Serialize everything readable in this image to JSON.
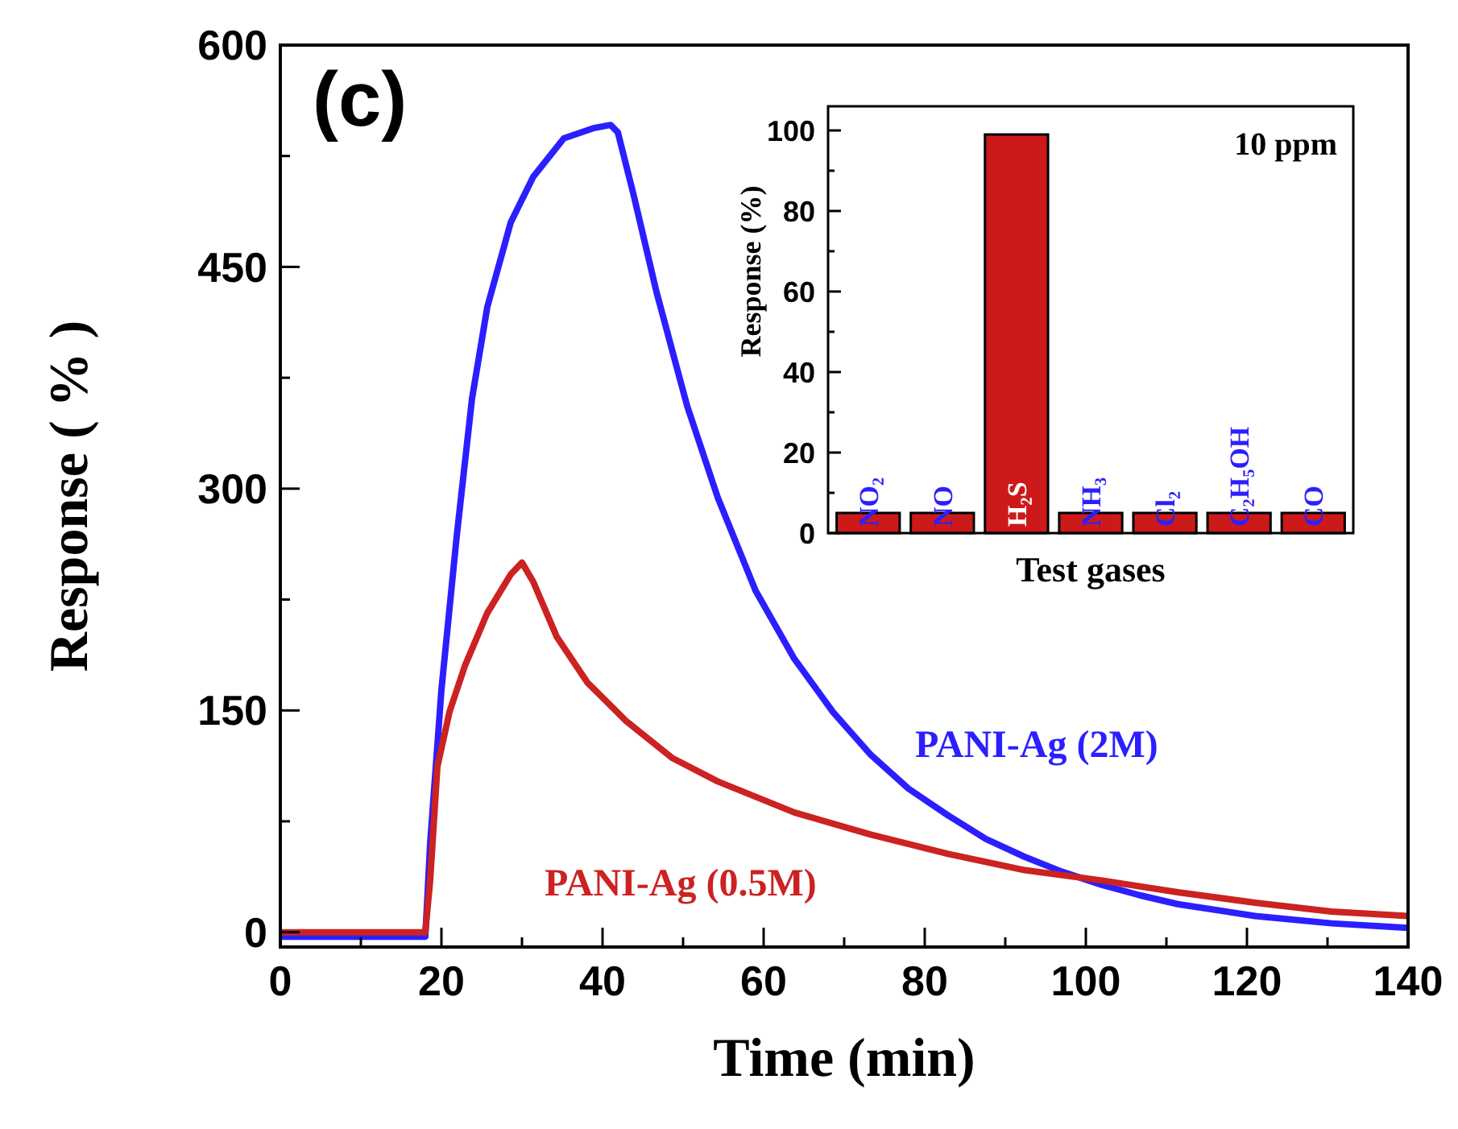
{
  "chart_data": [
    {
      "type": "line",
      "xlabel": "Time (min)",
      "ylabel": "Response ( % )",
      "annotations": [
        "(c)"
      ],
      "xlim": [
        0,
        140
      ],
      "ylim": [
        -10,
        600
      ],
      "xticks": [
        0,
        {
          "value": 10,
          "label": null
        },
        20,
        {
          "value": 30,
          "label": null
        },
        40,
        {
          "value": 50,
          "label": null
        },
        60,
        {
          "value": 70,
          "label": null
        },
        80,
        {
          "value": 90,
          "label": null
        },
        100,
        {
          "value": 110,
          "label": null
        },
        120,
        {
          "value": 130,
          "label": null
        },
        140
      ],
      "yticks": [
        0,
        {
          "value": 75,
          "label": null
        },
        150,
        {
          "value": 225,
          "label": null
        },
        300,
        {
          "value": 375,
          "label": null
        },
        450,
        {
          "value": 525,
          "label": null
        },
        600
      ],
      "legend": false,
      "grid": false,
      "marker": "none",
      "line_style": "solid",
      "series": [
        {
          "name": "PANI-Ag (2M)",
          "color": "#2b1fff",
          "x": [
            0,
            10,
            18,
            18.6,
            20,
            21.9,
            23.8,
            25.7,
            28.6,
            31.4,
            35.2,
            39,
            41,
            41.9,
            43.8,
            46.7,
            50.5,
            54.3,
            59,
            63.8,
            68.6,
            73.3,
            78,
            82.9,
            87.6,
            92.4,
            97,
            102,
            106.7,
            111.4,
            121,
            130.5,
            140
          ],
          "values": [
            -3,
            -3,
            -3,
            60,
            164,
            268,
            361,
            423,
            480,
            511,
            537,
            544,
            546,
            541,
            500,
            433,
            356,
            294,
            231,
            185,
            149,
            120,
            97,
            79,
            63,
            51,
            41,
            32,
            25,
            19,
            11,
            6,
            3
          ]
        },
        {
          "name": "PANI-Ag (0.5M)",
          "color": "#cc2222",
          "x": [
            0,
            10,
            18,
            18.6,
            19.5,
            21,
            22.9,
            25.7,
            28.6,
            30,
            31.4,
            34.3,
            38.1,
            42.9,
            48.6,
            54.3,
            63.8,
            73.3,
            82.9,
            92.4,
            102,
            111.4,
            121,
            130.5,
            140
          ],
          "values": [
            0,
            0,
            0,
            35,
            112,
            149,
            180,
            216,
            242,
            250,
            237,
            200,
            169,
            143,
            118,
            102,
            81,
            66,
            53,
            42,
            35,
            27,
            20,
            14,
            11
          ]
        }
      ]
    },
    {
      "type": "bar",
      "xlabel": "Test gases",
      "ylabel": "Response (%)",
      "annotations": [
        "10 ppm"
      ],
      "categories": [
        "NO₂",
        "NO",
        "H₂S",
        "NH₃",
        "Cl₂",
        "C₂H₅OH",
        "CO"
      ],
      "values": [
        5,
        5,
        99,
        5,
        5,
        5,
        5
      ],
      "color": "#cc1a1a",
      "ylim": [
        0,
        106
      ],
      "yticks": [
        0,
        {
          "value": 10,
          "label": null
        },
        20,
        {
          "value": 30,
          "label": null
        },
        40,
        {
          "value": 50,
          "label": null
        },
        60,
        {
          "value": 70,
          "label": null
        },
        80,
        {
          "value": 90,
          "label": null
        },
        100
      ]
    }
  ]
}
